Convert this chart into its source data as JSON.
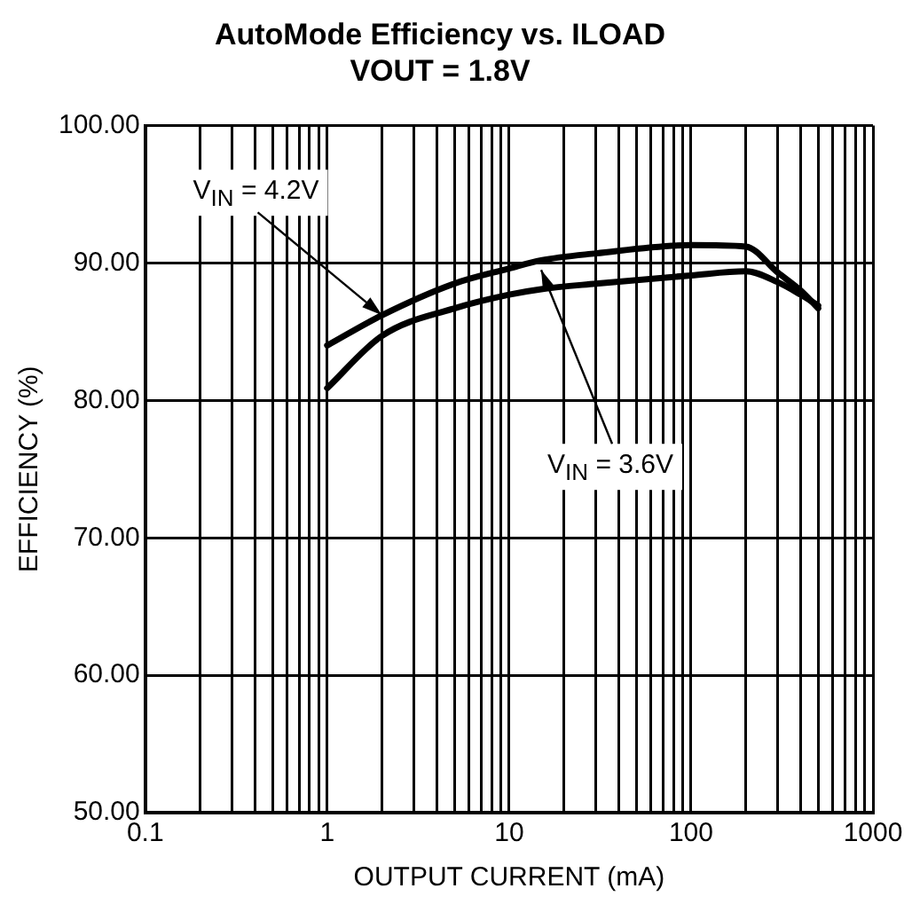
{
  "chart_data": {
    "type": "line",
    "title": "AutoMode Efficiency vs. ILOAD",
    "subtitle": "VOUT = 1.8V",
    "xlabel": "OUTPUT CURRENT (mA)",
    "ylabel": "EFFICIENCY (%)",
    "log": "x",
    "grid": true,
    "legend": false,
    "marker": "none",
    "line_style": "solid",
    "xlim": [
      0.1,
      1000
    ],
    "ylim": [
      50,
      100
    ],
    "xticks": [
      0.1,
      {
        "value": 0.2,
        "label": null
      },
      {
        "value": 0.3,
        "label": null
      },
      {
        "value": 0.4,
        "label": null
      },
      {
        "value": 0.5,
        "label": null
      },
      {
        "value": 0.6,
        "label": null
      },
      {
        "value": 0.7,
        "label": null
      },
      {
        "value": 0.8,
        "label": null
      },
      {
        "value": 0.9,
        "label": null
      },
      1,
      {
        "value": 2,
        "label": null
      },
      {
        "value": 3,
        "label": null
      },
      {
        "value": 4,
        "label": null
      },
      {
        "value": 5,
        "label": null
      },
      {
        "value": 6,
        "label": null
      },
      {
        "value": 7,
        "label": null
      },
      {
        "value": 8,
        "label": null
      },
      {
        "value": 9,
        "label": null
      },
      10,
      {
        "value": 20,
        "label": null
      },
      {
        "value": 30,
        "label": null
      },
      {
        "value": 40,
        "label": null
      },
      {
        "value": 50,
        "label": null
      },
      {
        "value": 60,
        "label": null
      },
      {
        "value": 70,
        "label": null
      },
      {
        "value": 80,
        "label": null
      },
      {
        "value": 90,
        "label": null
      },
      100,
      {
        "value": 200,
        "label": null
      },
      {
        "value": 300,
        "label": null
      },
      {
        "value": 400,
        "label": null
      },
      {
        "value": 500,
        "label": null
      },
      {
        "value": 600,
        "label": null
      },
      {
        "value": 700,
        "label": null
      },
      {
        "value": 800,
        "label": null
      },
      {
        "value": 900,
        "label": null
      },
      1000
    ],
    "yticks": [
      {
        "value": 50,
        "label": "50.00"
      },
      {
        "value": 60,
        "label": "60.00"
      },
      {
        "value": 70,
        "label": "70.00"
      },
      {
        "value": 80,
        "label": "80.00"
      },
      {
        "value": 90,
        "label": "90.00"
      },
      {
        "value": 100,
        "label": "100.00"
      }
    ],
    "series": [
      {
        "color": "#000000",
        "x": [
          1,
          2,
          5,
          10,
          15,
          30,
          100,
          200,
          300,
          400,
          500
        ],
        "values": [
          84.0,
          86.2,
          88.5,
          89.6,
          90.2,
          90.7,
          91.3,
          91.2,
          89.3,
          88.0,
          86.7
        ]
      },
      {
        "color": "#000000",
        "x": [
          1,
          2,
          5,
          10,
          15,
          30,
          100,
          200,
          300,
          400,
          500
        ],
        "values": [
          80.9,
          84.7,
          86.7,
          87.7,
          88.1,
          88.5,
          89.1,
          89.4,
          88.6,
          87.7,
          86.9
        ]
      }
    ],
    "annotations": [
      {
        "text": "V$_{IN}$ = 4.2V",
        "x": 2,
        "y": 86.2
      },
      {
        "text": "V$_{IN}$ = 3.6V",
        "x": 15,
        "y": 89.5
      }
    ]
  }
}
